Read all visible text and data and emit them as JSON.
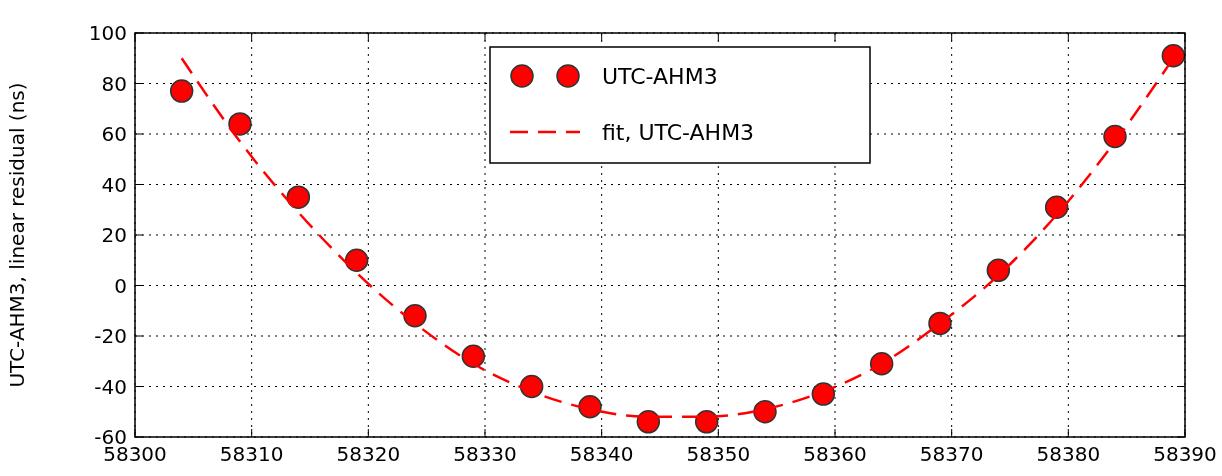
{
  "chart_data": {
    "type": "scatter",
    "ylabel": "UTC-AHM3, linear residual (ns)",
    "xlim": [
      58300,
      58390
    ],
    "xticks": [
      58300,
      58310,
      58320,
      58330,
      58340,
      58350,
      58360,
      58370,
      58380,
      58390
    ],
    "ylim": [
      -60,
      100
    ],
    "yticks": [
      -60,
      -40,
      -20,
      0,
      20,
      40,
      60,
      80,
      100
    ],
    "grid": true,
    "legend": "top",
    "series": [
      {
        "name": "UTC-AHM3",
        "color": "#ff0000",
        "marker": "circle",
        "x": [
          58304,
          58309,
          58314,
          58319,
          58324,
          58329,
          58334,
          58339,
          58344,
          58349,
          58354,
          58359,
          58364,
          58369,
          58374,
          58379,
          58384,
          58389
        ],
        "values": [
          77,
          64,
          35,
          10,
          -12,
          -28,
          -40,
          -48,
          -54,
          -54,
          -50,
          -43,
          -31,
          -15,
          6,
          31,
          59,
          91
        ]
      },
      {
        "name": "fit, UTC-AHM3",
        "type": "line",
        "color": "#ff0000",
        "line_style": "dashed",
        "marker": "none",
        "x": [
          58304,
          58309,
          58314,
          58319,
          58324,
          58329,
          58334,
          58339,
          58344,
          58349,
          58354,
          58359,
          58364,
          58369,
          58374,
          58379,
          58384,
          58389
        ],
        "values": [
          90,
          57,
          29,
          5,
          -15,
          -31,
          -42,
          -49,
          -52,
          -52,
          -49,
          -42,
          -31,
          -15,
          4,
          28,
          57,
          90
        ]
      }
    ]
  }
}
